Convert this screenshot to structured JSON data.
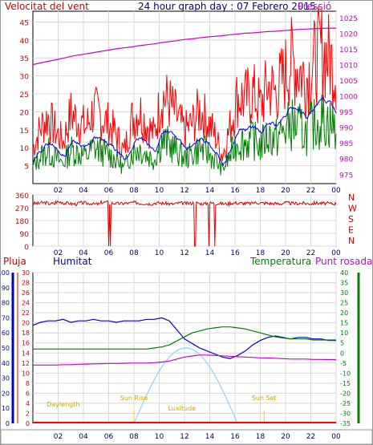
{
  "header": {
    "wind_label": "Velocitat del vent",
    "title": "24 hour graph day : 07 Febrero 2015",
    "pressure_label": "Pressió"
  },
  "middle_labels": {
    "pluja": "Pluja",
    "humitat": "Humitat",
    "temperatura": "Temperatura",
    "punt_rosada": "Punt rosada"
  },
  "colors": {
    "wind_gust": "#ff0000",
    "wind_avg": "#008000",
    "wind_mean": "#0000ff",
    "pressure": "#cc00cc",
    "direction": "#e00000",
    "humidity": "#0000cc",
    "temperature": "#008000",
    "dewpoint": "#cc00cc",
    "solar": "#99ccff",
    "rain": "#ff0000",
    "sun_events": "#ffcc00",
    "grid": "#d8d8d8"
  },
  "chart_data": [
    {
      "type": "line",
      "x_ticks": [
        "02",
        "04",
        "06",
        "08",
        "10",
        "12",
        "14",
        "16",
        "18",
        "20",
        "22",
        "00"
      ],
      "y_left_ticks": [
        "5",
        "10",
        "15",
        "20",
        "25",
        "30",
        "35",
        "40",
        "45"
      ],
      "y_left_range": [
        0,
        48
      ],
      "y_right_ticks": [
        "975",
        "980",
        "985",
        "990",
        "995",
        "1000",
        "1005",
        "1010",
        "1015",
        "1020",
        "1025"
      ],
      "y_right_range": [
        972,
        1027
      ],
      "series": [
        {
          "name": "Velocitat del vent",
          "axis": "left",
          "color": "wind_gust",
          "values": [
            10,
            16,
            19,
            15,
            12,
            20,
            18,
            16,
            21,
            19,
            17,
            14,
            9,
            18,
            21,
            17,
            14,
            25,
            23,
            19,
            15,
            17,
            21,
            18,
            14,
            8,
            16,
            25,
            24,
            26,
            22,
            28,
            26,
            30,
            35,
            33,
            30,
            34,
            38,
            36,
            32
          ]
        },
        {
          "name": "Pressió",
          "axis": "right",
          "color": "pressure",
          "values": [
            1010,
            1010.5,
            1011,
            1011.5,
            1012,
            1012.6,
            1013,
            1013.4,
            1013.8,
            1014.2,
            1014.6,
            1015,
            1015.3,
            1015.6,
            1016,
            1016.3,
            1016.6,
            1017,
            1017.3,
            1017.6,
            1018,
            1018.2,
            1018.5,
            1018.8,
            1019,
            1019.2,
            1019.5,
            1019.7,
            1020,
            1020.1,
            1020.3,
            1020.5,
            1020.6,
            1020.8,
            1021,
            1021.2,
            1021.3,
            1021.4,
            1021.5,
            1021.6,
            1021.6
          ]
        }
      ]
    },
    {
      "type": "line",
      "x_ticks": [
        "02",
        "04",
        "06",
        "08",
        "10",
        "12",
        "14",
        "16",
        "18",
        "20",
        "22",
        "00"
      ],
      "y_left_ticks": [
        "360",
        "270",
        "180",
        "90",
        "0"
      ],
      "y_right_labels": [
        "N",
        "W",
        "S",
        "E",
        "N"
      ],
      "y_range": [
        0,
        360
      ],
      "series": [
        {
          "name": "Direcció del vent",
          "color": "direction",
          "values": [
            300,
            305,
            298,
            310,
            302,
            296,
            304,
            300,
            295,
            308,
            302,
            299,
            301,
            306,
            300,
            298,
            303,
            300,
            296,
            302,
            300,
            304,
            298,
            302,
            300,
            297,
            303,
            301,
            299,
            305,
            302,
            300,
            298,
            303,
            300,
            301,
            299,
            302,
            300,
            298,
            301
          ]
        }
      ]
    },
    {
      "type": "line",
      "x_ticks": [
        "02",
        "04",
        "06",
        "08",
        "10",
        "12",
        "14",
        "16",
        "18",
        "20",
        "22",
        "00"
      ],
      "y_left_ticks": [
        "0",
        "10",
        "20",
        "30",
        "40",
        "50",
        "60",
        "70",
        "80",
        "90",
        "100"
      ],
      "y_left2_ticks": [
        "0",
        "2",
        "4",
        "6",
        "8",
        "10",
        "12",
        "14",
        "16",
        "18",
        "20",
        "22",
        "24",
        "26",
        "28",
        "30"
      ],
      "y_right_ticks": [
        "-35",
        "-30",
        "-25",
        "-20",
        "-15",
        "-10",
        "-5",
        "0",
        "5",
        "10",
        "15",
        "20",
        "25",
        "30",
        "35",
        "40"
      ],
      "humidity_range": [
        0,
        100
      ],
      "temperature_range": [
        -35,
        40
      ],
      "series": [
        {
          "name": "Humitat",
          "color": "humidity",
          "values": [
            65,
            67,
            68,
            68,
            69,
            67,
            68,
            68,
            69,
            68,
            68,
            67,
            68,
            68,
            68,
            69,
            69,
            70,
            68,
            62,
            56,
            53,
            50,
            48,
            46,
            44,
            43,
            45,
            48,
            52,
            55,
            57,
            58,
            57,
            56,
            57,
            57,
            56,
            56,
            55,
            55
          ]
        },
        {
          "name": "Temperatura",
          "color": "temperature",
          "values": [
            2,
            2,
            2,
            2,
            2,
            2,
            2,
            2,
            2,
            2,
            2,
            2,
            2,
            2,
            2,
            2,
            2.5,
            3,
            4,
            6,
            8,
            10,
            11,
            12,
            12.5,
            13,
            13,
            12.5,
            12,
            11,
            10,
            9,
            8,
            7.5,
            7,
            7,
            7,
            6.5,
            6.5,
            6.5,
            6.5
          ]
        },
        {
          "name": "Punt rosada",
          "color": "dewpoint",
          "values": [
            -6,
            -6,
            -6,
            -6,
            -5.8,
            -5.8,
            -5.6,
            -5.5,
            -5.4,
            -5.3,
            -5.2,
            -5.2,
            -5.1,
            -5,
            -5,
            -5,
            -4.8,
            -4.5,
            -4,
            -3,
            -2,
            -1.5,
            -1,
            -1,
            -1.2,
            -1.4,
            -1.6,
            -1.8,
            -2,
            -2.2,
            -2.4,
            -2.5,
            -2.6,
            -2.8,
            -3,
            -3,
            -3,
            -3.2,
            -3.2,
            -3.3,
            -3.3
          ]
        }
      ],
      "annotations": [
        {
          "text": "Sun Rise",
          "hour": 8.0
        },
        {
          "text": "Sun Set",
          "hour": 18.3
        },
        {
          "text": "Daylength",
          "hour": 2.4
        },
        {
          "text": "Luxitude",
          "hour": 11.8
        }
      ],
      "solar_curve": {
        "start_hour": 8.0,
        "end_hour": 16.2,
        "peak_hour": 12.6,
        "peak_value": 15
      }
    }
  ]
}
